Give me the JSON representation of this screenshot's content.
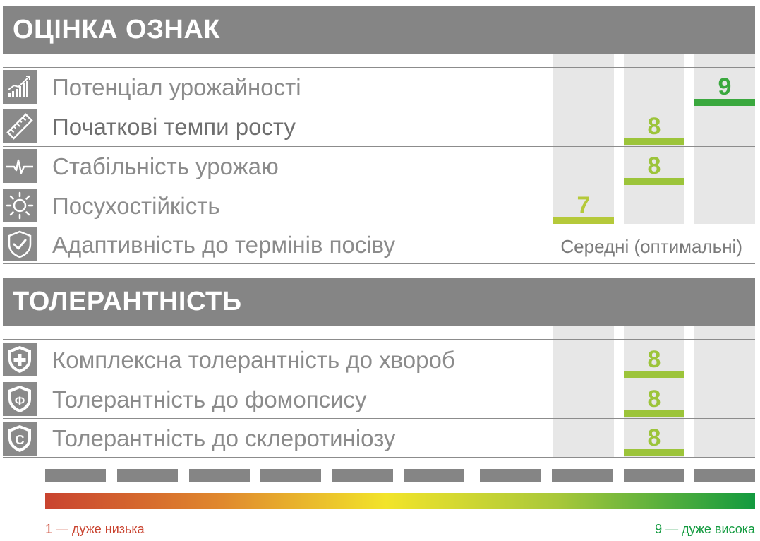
{
  "sections": {
    "traits_title": "ОЦІНКА ОЗНАК",
    "tolerance_title": "ТОЛЕРАНТНІСТЬ"
  },
  "traits": [
    {
      "label": "Потенціал урожайності",
      "score": "9",
      "color": "#3aa83e",
      "icon": "growth-chart-icon"
    },
    {
      "label": "Початкові темпи росту",
      "score": "8",
      "color": "#9cc43a",
      "icon": "ruler-icon"
    },
    {
      "label": "Стабільність урожаю",
      "score": "8",
      "color": "#9cc43a",
      "icon": "pulse-icon"
    },
    {
      "label": "Посухостійкість",
      "score": "7",
      "color": "#b5c93a",
      "icon": "sun-icon"
    },
    {
      "label": "Адаптивність до термінів посіву",
      "value": "Середні (оптимальні)",
      "icon": "shield-check-icon"
    }
  ],
  "tolerance": [
    {
      "label": "Комплексна толерантність до хвороб",
      "score": "8",
      "color": "#9cc43a",
      "icon": "shield-plus-icon"
    },
    {
      "label": "Толерантність до фомопсису",
      "score": "8",
      "color": "#9cc43a",
      "icon": "shield-f-icon"
    },
    {
      "label": "Толерантність до склеротиніозу",
      "score": "8",
      "color": "#9cc43a",
      "icon": "shield-s-icon"
    }
  ],
  "scale": {
    "low_label": "1 — дуже низька",
    "high_label": "9 — дуже висока",
    "low_color": "#c9432f",
    "high_color": "#129a3f"
  }
}
